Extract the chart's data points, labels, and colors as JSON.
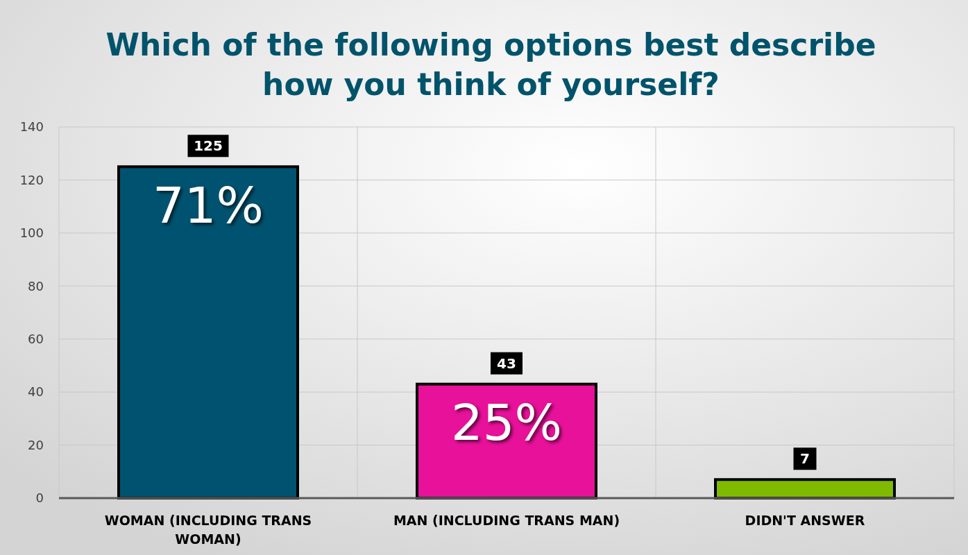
{
  "chart_data": {
    "type": "bar",
    "title": "Which of the following options best describe how you think of yourself?",
    "categories": [
      "WOMAN (INCLUDING TRANS WOMAN)",
      "MAN (INCLUDING TRANS MAN)",
      "DIDN'T ANSWER"
    ],
    "values": [
      125,
      43,
      7
    ],
    "colors": [
      "#005370",
      "#e8119a",
      "#7fba00"
    ],
    "ylim": [
      0,
      140
    ],
    "yticks": [
      0,
      20,
      40,
      60,
      80,
      100,
      120,
      140
    ],
    "grid": true,
    "data_labels": true,
    "annotations": [
      "71%",
      "25%"
    ]
  }
}
